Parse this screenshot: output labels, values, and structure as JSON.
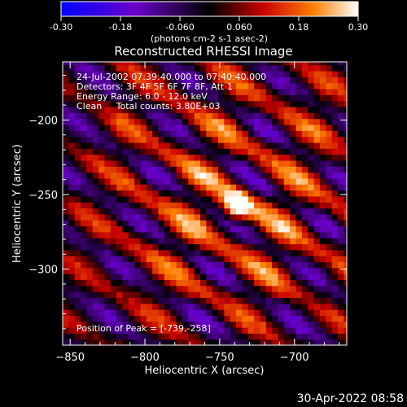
{
  "chart_data": {
    "type": "heatmap",
    "title": "Reconstructed RHESSI Image",
    "xlabel": "Heliocentric X (arcsec)",
    "ylabel": "Heliocentric Y (arcsec)",
    "xlim": [
      -855,
      -665
    ],
    "ylim": [
      -351,
      -161
    ],
    "x_ticks": [
      -850,
      -800,
      -750,
      -700
    ],
    "y_ticks": [
      -200,
      -250,
      -300
    ],
    "colorbar": {
      "range": [
        -0.3,
        0.3
      ],
      "ticks": [
        "-0.30",
        "-0.18",
        "-0.060",
        "0.060",
        "0.18",
        "0.30"
      ],
      "label": "(photons cm-2 s-1 asec-2)",
      "colors": [
        "#0000ff",
        "#6a00c8",
        "#000000",
        "#c80000",
        "#ff8000",
        "#ffffff"
      ]
    },
    "annotations": [
      "24-Jul-2002 07:39:40.000 to 07:40:40.000",
      "Detectors: 3F 4F 5F 6F 7F 8F, Att 1",
      "Energy Range: 6.0 - 12.0 keV",
      "Clean     Total counts: 3.80E+03"
    ],
    "peak_label": "Position of Peak = [-739,-258]",
    "peak": [
      -739,
      -258
    ]
  },
  "footer": {
    "timestamp": "30-Apr-2022 08:58"
  }
}
